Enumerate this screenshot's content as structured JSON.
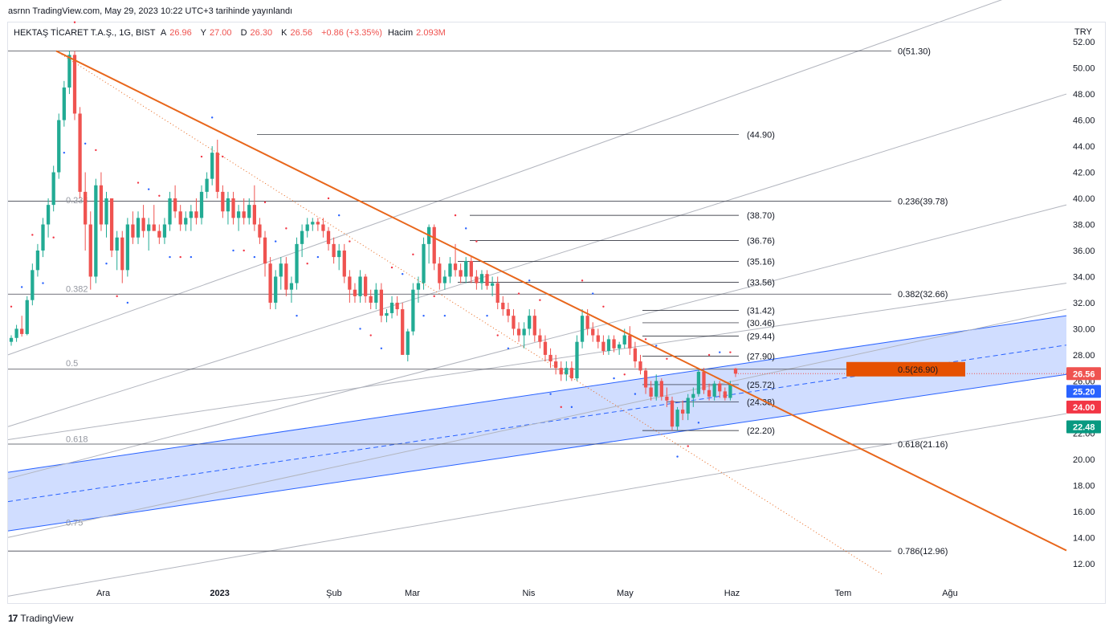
{
  "header": {
    "publish_line": "asrnn TradingView.com, May 29, 2023 10:22 UTC+3 tarihinde yayınlandı"
  },
  "legend": {
    "symbol": "HEKTAŞ TİCARET T.A.Ş., 1G, BIST",
    "open_label": "A",
    "open": "26.96",
    "high_label": "Y",
    "high": "27.00",
    "low_label": "D",
    "low": "26.30",
    "close_label": "K",
    "close": "26.56",
    "change": "+0.86 (+3.35%)",
    "volume_label": "Hacim",
    "volume": "2.093M"
  },
  "currency": "TRY",
  "footer": {
    "brand": "TradingView",
    "logo_text": "17"
  },
  "colors": {
    "up": "#22ab94",
    "down": "#ef5350",
    "trend": "#e8661b",
    "channel": "#2962ff",
    "grid": "#b2b5be"
  },
  "chart_data": {
    "type": "candlestick",
    "y_axis": {
      "min": 11.0,
      "max": 52.5,
      "ticks": [
        "12.00",
        "14.00",
        "16.00",
        "18.00",
        "20.00",
        "22.00",
        "24.00",
        "26.00",
        "28.00",
        "30.00",
        "32.00",
        "34.00",
        "36.00",
        "38.00",
        "40.00",
        "42.00",
        "44.00",
        "46.00",
        "48.00",
        "50.00",
        "52.00"
      ]
    },
    "x_axis": {
      "labels": [
        {
          "label": "Ara",
          "x": 0.09
        },
        {
          "label": "2023",
          "x": 0.2
        },
        {
          "label": "Şub",
          "x": 0.308
        },
        {
          "label": "Mar",
          "x": 0.382
        },
        {
          "label": "Nis",
          "x": 0.492
        },
        {
          "label": "May",
          "x": 0.583
        },
        {
          "label": "Haz",
          "x": 0.684
        },
        {
          "label": "Tem",
          "x": 0.789
        },
        {
          "label": "Ağu",
          "x": 0.89
        }
      ]
    },
    "fib_levels": [
      {
        "label": "0(51.30)",
        "value": 51.3
      },
      {
        "label": "0.236(39.78)",
        "value": 39.78
      },
      {
        "label": "0.382(32.66)",
        "value": 32.66
      },
      {
        "label": "0.5(26.90)",
        "value": 26.9
      },
      {
        "label": "0.618(21.16)",
        "value": 21.16
      },
      {
        "label": "0.786(12.96)",
        "value": 12.96
      }
    ],
    "left_fib_labels": [
      {
        "label": "0.236",
        "value": 39.5
      },
      {
        "label": "0.382",
        "value": 32.7
      },
      {
        "label": "0.5",
        "value": 27.0
      },
      {
        "label": "0.618",
        "value": 21.2
      },
      {
        "label": "0.75",
        "value": 14.8
      }
    ],
    "horizontal_levels": [
      {
        "label": "(44.90)",
        "value": 44.9
      },
      {
        "label": "(38.70)",
        "value": 38.7
      },
      {
        "label": "(36.76)",
        "value": 36.76
      },
      {
        "label": "(35.16)",
        "value": 35.16
      },
      {
        "label": "(33.56)",
        "value": 33.56
      },
      {
        "label": "(31.42)",
        "value": 31.42
      },
      {
        "label": "(30.46)",
        "value": 30.46
      },
      {
        "label": "(29.44)",
        "value": 29.44
      },
      {
        "label": "(27.90)",
        "value": 27.9
      },
      {
        "label": "(25.72)",
        "value": 25.72
      },
      {
        "label": "(24.38)",
        "value": 24.38
      },
      {
        "label": "(22.20)",
        "value": 22.2
      }
    ],
    "price_badges": [
      {
        "label": "26.56",
        "value": 26.56,
        "color": "#ef5350"
      },
      {
        "label": "25.20",
        "value": 25.2,
        "color": "#2962ff"
      },
      {
        "label": "24.00",
        "value": 24.0,
        "color": "#f23645"
      },
      {
        "label": "22.48",
        "value": 22.48,
        "color": "#089981"
      }
    ],
    "highlight_badge": {
      "label": "0.5(26.90)",
      "value": 26.9,
      "color": "#e65100"
    },
    "candles": [
      [
        29.0,
        29.5,
        28.7,
        29.3
      ],
      [
        29.3,
        30.3,
        29.0,
        30.0
      ],
      [
        30.0,
        31.0,
        29.4,
        29.6
      ],
      [
        29.6,
        32.5,
        29.5,
        32.2
      ],
      [
        32.2,
        35.0,
        31.8,
        34.5
      ],
      [
        34.5,
        36.5,
        34.0,
        36.0
      ],
      [
        36.0,
        38.5,
        35.5,
        38.0
      ],
      [
        38.0,
        40.0,
        37.0,
        39.5
      ],
      [
        39.5,
        42.5,
        39.0,
        42.0
      ],
      [
        42.0,
        46.5,
        41.5,
        46.0
      ],
      [
        46.0,
        49.0,
        45.5,
        48.5
      ],
      [
        48.5,
        51.3,
        48.0,
        51.0
      ],
      [
        51.0,
        51.3,
        46.0,
        46.5
      ],
      [
        46.5,
        47.0,
        40.0,
        40.5
      ],
      [
        40.5,
        42.0,
        36.0,
        38.0
      ],
      [
        38.0,
        39.0,
        33.0,
        34.0
      ],
      [
        34.0,
        41.5,
        33.5,
        41.0
      ],
      [
        41.0,
        42.0,
        37.5,
        38.0
      ],
      [
        38.0,
        40.5,
        37.0,
        40.0
      ],
      [
        40.0,
        40.0,
        35.5,
        36.0
      ],
      [
        36.0,
        37.5,
        34.5,
        37.0
      ],
      [
        37.0,
        37.5,
        33.5,
        34.5
      ],
      [
        34.5,
        38.5,
        34.0,
        38.0
      ],
      [
        38.0,
        39.0,
        36.5,
        37.0
      ],
      [
        37.0,
        39.0,
        36.5,
        38.5
      ],
      [
        38.5,
        39.5,
        37.0,
        37.5
      ],
      [
        37.5,
        38.5,
        36.0,
        38.0
      ],
      [
        38.0,
        39.5,
        37.5,
        37.5
      ],
      [
        37.5,
        38.0,
        36.5,
        37.0
      ],
      [
        37.0,
        38.5,
        36.5,
        38.0
      ],
      [
        38.0,
        40.5,
        37.5,
        40.0
      ],
      [
        40.0,
        41.0,
        38.5,
        39.0
      ],
      [
        39.0,
        39.5,
        37.5,
        38.0
      ],
      [
        38.0,
        39.0,
        37.5,
        38.5
      ],
      [
        38.5,
        39.5,
        37.5,
        39.0
      ],
      [
        39.0,
        40.0,
        38.0,
        38.5
      ],
      [
        38.5,
        41.0,
        38.0,
        40.5
      ],
      [
        40.5,
        42.0,
        40.0,
        41.5
      ],
      [
        41.5,
        44.0,
        41.0,
        43.5
      ],
      [
        43.5,
        44.5,
        40.0,
        40.5
      ],
      [
        40.5,
        41.0,
        38.5,
        39.0
      ],
      [
        39.0,
        40.5,
        38.0,
        40.0
      ],
      [
        40.0,
        40.5,
        38.0,
        38.5
      ],
      [
        38.5,
        39.5,
        37.5,
        39.0
      ],
      [
        39.0,
        40.0,
        38.0,
        38.5
      ],
      [
        38.5,
        40.0,
        38.0,
        39.5
      ],
      [
        39.5,
        41.0,
        37.5,
        38.0
      ],
      [
        38.0,
        38.5,
        36.5,
        37.0
      ],
      [
        37.0,
        37.5,
        34.0,
        35.0
      ],
      [
        35.0,
        35.5,
        31.5,
        32.0
      ],
      [
        32.0,
        34.5,
        31.5,
        34.0
      ],
      [
        34.0,
        35.5,
        33.0,
        35.0
      ],
      [
        35.0,
        35.5,
        32.5,
        33.0
      ],
      [
        33.0,
        34.0,
        32.0,
        33.5
      ],
      [
        33.5,
        37.0,
        33.0,
        36.5
      ],
      [
        36.5,
        38.0,
        35.5,
        37.5
      ],
      [
        37.5,
        38.5,
        37.0,
        38.0
      ],
      [
        38.0,
        38.5,
        37.5,
        38.2
      ],
      [
        38.2,
        38.5,
        37.5,
        38.0
      ],
      [
        38.0,
        38.5,
        37.0,
        37.5
      ],
      [
        37.5,
        37.8,
        36.0,
        36.5
      ],
      [
        36.5,
        37.0,
        35.0,
        35.5
      ],
      [
        35.5,
        36.5,
        34.5,
        36.0
      ],
      [
        36.0,
        36.5,
        33.5,
        34.0
      ],
      [
        34.0,
        34.5,
        32.0,
        33.0
      ],
      [
        33.0,
        33.5,
        32.0,
        32.5
      ],
      [
        32.5,
        34.5,
        32.0,
        34.0
      ],
      [
        34.0,
        34.2,
        32.0,
        32.5
      ],
      [
        32.5,
        33.0,
        31.5,
        32.0
      ],
      [
        32.0,
        33.5,
        31.5,
        33.0
      ],
      [
        33.0,
        33.5,
        30.5,
        31.0
      ],
      [
        31.0,
        31.5,
        30.5,
        31.2
      ],
      [
        31.2,
        32.5,
        30.8,
        32.0
      ],
      [
        32.0,
        32.5,
        31.0,
        31.5
      ],
      [
        31.5,
        32.0,
        28.0,
        28.0
      ],
      [
        28.0,
        30.0,
        27.5,
        29.8
      ],
      [
        29.8,
        33.5,
        29.5,
        33.0
      ],
      [
        33.0,
        34.0,
        32.0,
        33.5
      ],
      [
        33.5,
        37.0,
        33.0,
        36.5
      ],
      [
        36.5,
        38.0,
        35.0,
        37.8
      ],
      [
        37.8,
        38.0,
        34.5,
        35.0
      ],
      [
        35.0,
        35.5,
        33.0,
        33.5
      ],
      [
        33.5,
        34.5,
        33.0,
        34.0
      ],
      [
        34.0,
        35.5,
        33.5,
        35.0
      ],
      [
        35.0,
        36.5,
        34.0,
        34.5
      ],
      [
        34.5,
        35.0,
        33.5,
        34.0
      ],
      [
        34.0,
        35.5,
        33.5,
        35.2
      ],
      [
        35.2,
        35.5,
        33.5,
        34.0
      ],
      [
        34.0,
        34.5,
        33.0,
        33.5
      ],
      [
        33.5,
        34.5,
        33.0,
        34.2
      ],
      [
        34.2,
        34.5,
        33.0,
        33.3
      ],
      [
        33.3,
        34.0,
        32.5,
        33.5
      ],
      [
        33.5,
        34.0,
        31.5,
        32.0
      ],
      [
        32.0,
        32.5,
        31.0,
        31.5
      ],
      [
        31.5,
        32.0,
        30.5,
        31.0
      ],
      [
        31.0,
        31.5,
        29.5,
        30.0
      ],
      [
        30.0,
        30.5,
        29.0,
        29.5
      ],
      [
        29.5,
        30.5,
        28.5,
        30.0
      ],
      [
        30.0,
        31.5,
        29.5,
        31.0
      ],
      [
        31.0,
        31.5,
        29.0,
        29.5
      ],
      [
        29.5,
        30.0,
        28.5,
        29.0
      ],
      [
        29.0,
        29.5,
        27.5,
        28.0
      ],
      [
        28.0,
        28.5,
        27.0,
        27.5
      ],
      [
        27.5,
        28.0,
        26.5,
        27.0
      ],
      [
        27.0,
        27.5,
        26.0,
        26.5
      ],
      [
        26.5,
        27.5,
        26.0,
        27.0
      ],
      [
        27.0,
        27.5,
        26.0,
        26.2
      ],
      [
        26.2,
        29.5,
        26.0,
        29.0
      ],
      [
        29.0,
        31.5,
        28.5,
        31.0
      ],
      [
        31.0,
        31.5,
        29.5,
        30.0
      ],
      [
        30.0,
        30.5,
        29.0,
        29.5
      ],
      [
        29.5,
        30.0,
        28.5,
        29.0
      ],
      [
        29.0,
        29.5,
        28.0,
        28.3
      ],
      [
        28.3,
        29.5,
        28.0,
        29.2
      ],
      [
        29.2,
        29.5,
        28.2,
        28.5
      ],
      [
        28.5,
        29.0,
        28.0,
        28.8
      ],
      [
        28.8,
        30.0,
        28.5,
        29.5
      ],
      [
        29.5,
        30.2,
        28.0,
        28.5
      ],
      [
        28.5,
        29.0,
        27.0,
        27.5
      ],
      [
        27.5,
        28.0,
        26.5,
        26.8
      ],
      [
        26.8,
        27.0,
        25.0,
        25.5
      ],
      [
        25.5,
        26.0,
        24.5,
        24.8
      ],
      [
        24.8,
        26.5,
        24.5,
        26.0
      ],
      [
        26.0,
        26.2,
        24.5,
        24.8
      ],
      [
        24.8,
        25.5,
        24.0,
        24.5
      ],
      [
        24.5,
        24.8,
        22.2,
        22.5
      ],
      [
        22.5,
        24.0,
        22.2,
        23.8
      ],
      [
        23.8,
        24.5,
        23.0,
        23.5
      ],
      [
        23.5,
        25.0,
        23.0,
        24.7
      ],
      [
        24.7,
        25.5,
        24.0,
        25.0
      ],
      [
        25.0,
        27.0,
        24.8,
        26.7
      ],
      [
        26.7,
        27.0,
        25.0,
        25.3
      ],
      [
        25.3,
        25.8,
        24.5,
        24.8
      ],
      [
        24.8,
        26.0,
        24.5,
        25.8
      ],
      [
        25.8,
        26.0,
        24.7,
        25.2
      ],
      [
        25.2,
        25.5,
        24.5,
        24.7
      ],
      [
        24.7,
        26.0,
        24.5,
        25.7
      ],
      [
        26.96,
        27.0,
        26.3,
        26.56
      ]
    ]
  }
}
